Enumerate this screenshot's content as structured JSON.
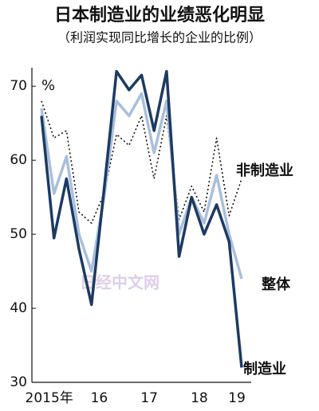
{
  "chart_data": {
    "type": "line",
    "title": "日本制造业的业绩恶化明显",
    "subtitle": "（利润实现同比增长的企业的比例）",
    "y_label": "%",
    "watermark": "日经中文网",
    "categories": [
      null,
      "2015年",
      null,
      null,
      null,
      "16",
      null,
      null,
      null,
      "17",
      null,
      null,
      null,
      "18",
      null,
      null,
      "19"
    ],
    "series": [
      {
        "name": "非制造业",
        "color": "#111111",
        "dash": true,
        "values": [
          68,
          63,
          64,
          53,
          51.5,
          55.5,
          63.5,
          62,
          66,
          57.5,
          66,
          52,
          56.5,
          53,
          63,
          52.5,
          57.5
        ]
      },
      {
        "name": "整体",
        "color": "#a9bfdb",
        "dash": false,
        "values": [
          67,
          55.5,
          60.5,
          50,
          45,
          55,
          68,
          66,
          69,
          61,
          68,
          50,
          55,
          51.5,
          58,
          50,
          44
        ]
      },
      {
        "name": "制造业",
        "color": "#1c3a63",
        "dash": false,
        "values": [
          66,
          49.5,
          57.5,
          48,
          40.5,
          56,
          72,
          69.5,
          71.5,
          64,
          72,
          47,
          55,
          50,
          54,
          49,
          32
        ]
      }
    ],
    "ylim": [
      30,
      72.5
    ],
    "yticks": [
      30,
      40,
      50,
      60,
      70
    ]
  }
}
